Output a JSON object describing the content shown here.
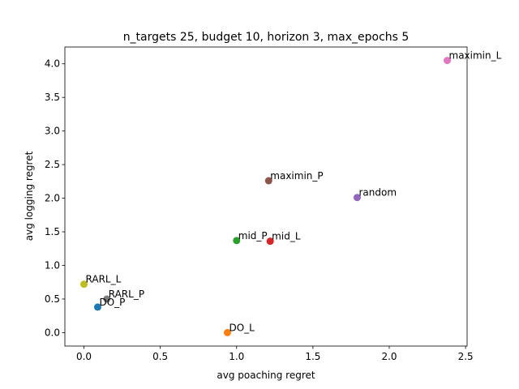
{
  "chart_data": {
    "type": "scatter",
    "title": "n_targets 25, budget 10, horizon 3, max_epochs 5",
    "xlabel": "avg poaching regret",
    "ylabel": "avg logging regret",
    "xlim": [
      -0.125,
      2.51
    ],
    "ylim": [
      -0.2,
      4.25
    ],
    "xticks": [
      0.0,
      0.5,
      1.0,
      1.5,
      2.0,
      2.5
    ],
    "xtick_labels": [
      "0.0",
      "0.5",
      "1.0",
      "1.5",
      "2.0",
      "2.5"
    ],
    "yticks": [
      0.0,
      0.5,
      1.0,
      1.5,
      2.0,
      2.5,
      3.0,
      3.5,
      4.0
    ],
    "ytick_labels": [
      "0.0",
      "0.5",
      "1.0",
      "1.5",
      "2.0",
      "2.5",
      "3.0",
      "3.5",
      "4.0"
    ],
    "grid": false,
    "legend": "none",
    "points": [
      {
        "label": "DO_P",
        "x": 0.09,
        "y": 0.38,
        "color": "#1f77b4"
      },
      {
        "label": "DO_L",
        "x": 0.94,
        "y": 0.0,
        "color": "#ff7f0e"
      },
      {
        "label": "mid_P",
        "x": 1.0,
        "y": 1.37,
        "color": "#2ca02c"
      },
      {
        "label": "mid_L",
        "x": 1.22,
        "y": 1.36,
        "color": "#d62728"
      },
      {
        "label": "random",
        "x": 1.79,
        "y": 2.01,
        "color": "#9467bd"
      },
      {
        "label": "maximin_P",
        "x": 1.21,
        "y": 2.26,
        "color": "#8c564b"
      },
      {
        "label": "maximin_L",
        "x": 2.38,
        "y": 4.05,
        "color": "#e377c2"
      },
      {
        "label": "RARL_P",
        "x": 0.15,
        "y": 0.5,
        "color": "#7f7f7f"
      },
      {
        "label": "RARL_L",
        "x": 0.0,
        "y": 0.72,
        "color": "#bcbd22"
      }
    ]
  }
}
